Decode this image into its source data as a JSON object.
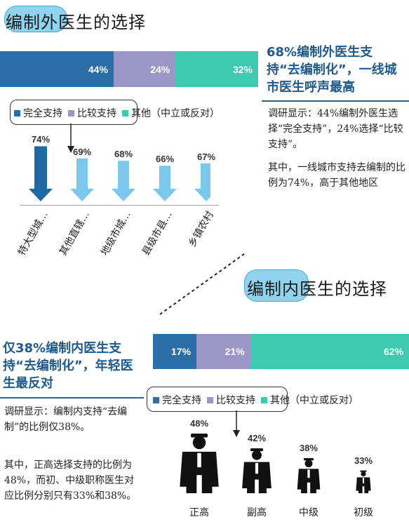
{
  "sections": {
    "outside": {
      "title_prefix": "编制外",
      "title_suffix": "医生的选择",
      "headline": "68%编制外医生支持“去编制化”，一线城市医生呼声最高",
      "paragraph1": "调研显示：44%编制外医生选择“完全支持”，24%选择“比较支持”。",
      "paragraph2": "其中，一线城市支持去编制的比例为74%，高于其他地区"
    },
    "inside": {
      "title_prefix": "编制内",
      "title_suffix": "医生的选择",
      "headline": "仅38%编制内医生支持“去编制化”，年轻医生最反对",
      "paragraph1": "调研显示：编制内支持“去编制”的比例仅38%。",
      "paragraph2": "其中，正高选择支持的比例为48%，而初、中级职称医生对应比例分别只有33%和38%。"
    }
  },
  "colors": {
    "full": "#2a6fa8",
    "somewhat": "#9a97c8",
    "other": "#3ec9b0",
    "arrow_dark": "#1f6aa5",
    "arrow_light": "#7cc8ec",
    "figure": "#111111"
  },
  "chart_data": [
    {
      "type": "bar",
      "orientation": "horizontal-stacked",
      "categories": [
        "编制外医生"
      ],
      "series": [
        {
          "name": "完全支持",
          "values": [
            44
          ],
          "label": "44%"
        },
        {
          "name": "比较支持",
          "values": [
            24
          ],
          "label": "24%"
        },
        {
          "name": "其他（中立或反对）",
          "values": [
            32
          ],
          "label": "32%"
        }
      ],
      "legend": [
        "完全支持",
        "比较支持",
        "其他（中立或反对）"
      ]
    },
    {
      "type": "bar",
      "categories": [
        "特大型城…",
        "其他直辖…",
        "地级市城…",
        "县级市县…",
        "乡镇农村"
      ],
      "values": [
        74,
        69,
        68,
        66,
        67
      ],
      "labels": [
        "74%",
        "69%",
        "68%",
        "66%",
        "67%"
      ],
      "ylim": [
        60,
        75
      ]
    },
    {
      "type": "bar",
      "orientation": "horizontal-stacked",
      "categories": [
        "编制内医生"
      ],
      "series": [
        {
          "name": "完全支持",
          "values": [
            17
          ],
          "label": "17%"
        },
        {
          "name": "比较支持",
          "values": [
            21
          ],
          "label": "21%"
        },
        {
          "name": "其他（中立或反对）",
          "values": [
            62
          ],
          "label": "62%"
        }
      ],
      "legend": [
        "完全支持",
        "比较支持",
        "其他（中立或反对）"
      ]
    },
    {
      "type": "bar",
      "categories": [
        "正高",
        "副高",
        "中级",
        "初级"
      ],
      "values": [
        48,
        42,
        38,
        33
      ],
      "labels": [
        "48%",
        "42%",
        "38%",
        "33%"
      ],
      "ylim": [
        30,
        50
      ]
    }
  ]
}
